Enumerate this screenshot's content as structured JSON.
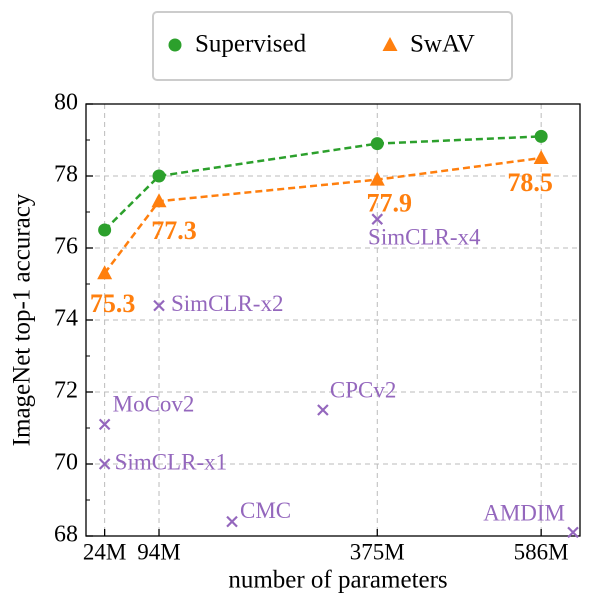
{
  "chart_data": {
    "type": "line",
    "x_label": "number of parameters",
    "y_label": "ImageNet top-1 accuracy",
    "xlim": [
      0,
      636
    ],
    "ylim": [
      68,
      80
    ],
    "xticks": [
      {
        "value": 24,
        "label": "24M"
      },
      {
        "value": 94,
        "label": "94M"
      },
      {
        "value": 375,
        "label": "375M"
      },
      {
        "value": 586,
        "label": "586M"
      }
    ],
    "yticks": [
      68,
      70,
      72,
      74,
      76,
      78,
      80
    ],
    "yticks_minor": [
      69,
      71,
      73,
      75,
      77,
      79
    ],
    "grid": true,
    "legend": "top",
    "x": [
      24,
      94,
      375,
      586
    ],
    "series": [
      {
        "name": "Supervised",
        "color": "#2ca02c",
        "marker": "circle",
        "values": [
          76.5,
          78,
          78.9,
          79.1
        ]
      },
      {
        "name": "SwAV",
        "color": "#ff7f0e",
        "marker": "triangle",
        "values": [
          75.3,
          77.3,
          77.9,
          78.5
        ],
        "value_labels": [
          "75.3",
          "77.3",
          "77.9",
          "78.5"
        ]
      }
    ],
    "other_methods": {
      "color": "#9467bd",
      "marker": "x",
      "labels": [
        "MoCov2",
        "SimCLR-x1",
        "SimCLR-x2",
        "SimCLR-x4",
        "CPCv2",
        "CMC",
        "AMDIM"
      ],
      "x": [
        24,
        24,
        94,
        375,
        305,
        188,
        627
      ],
      "values": [
        71.1,
        70,
        74.4,
        76.8,
        71.5,
        68.4,
        68.1
      ]
    }
  }
}
